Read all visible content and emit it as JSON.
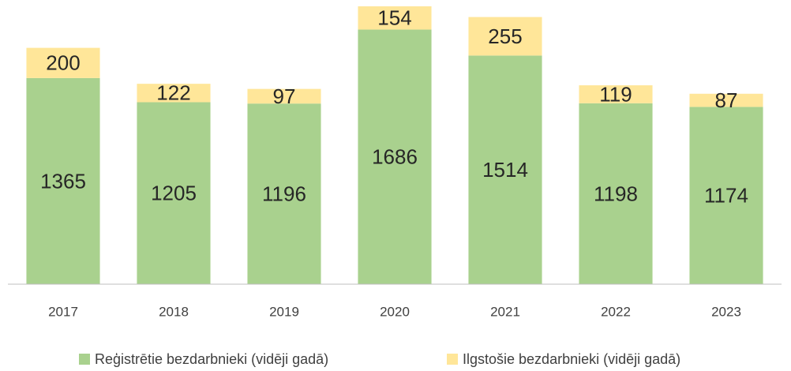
{
  "chart_data": {
    "type": "stacked_bar",
    "categories": [
      "2017",
      "2018",
      "2019",
      "2020",
      "2021",
      "2022",
      "2023"
    ],
    "series": [
      {
        "name": "Reģistrētie bezdarbnieki (vidēji gadā)",
        "color": "#a9d18e",
        "values": [
          1365,
          1205,
          1196,
          1686,
          1514,
          1198,
          1174
        ]
      },
      {
        "name": "Ilgstošie bezdarbnieki (vidēji gadā)",
        "color": "#ffe699",
        "values": [
          200,
          122,
          97,
          154,
          255,
          119,
          87
        ]
      }
    ],
    "ylim": [
      0,
      1840
    ],
    "legend": "bottom"
  }
}
